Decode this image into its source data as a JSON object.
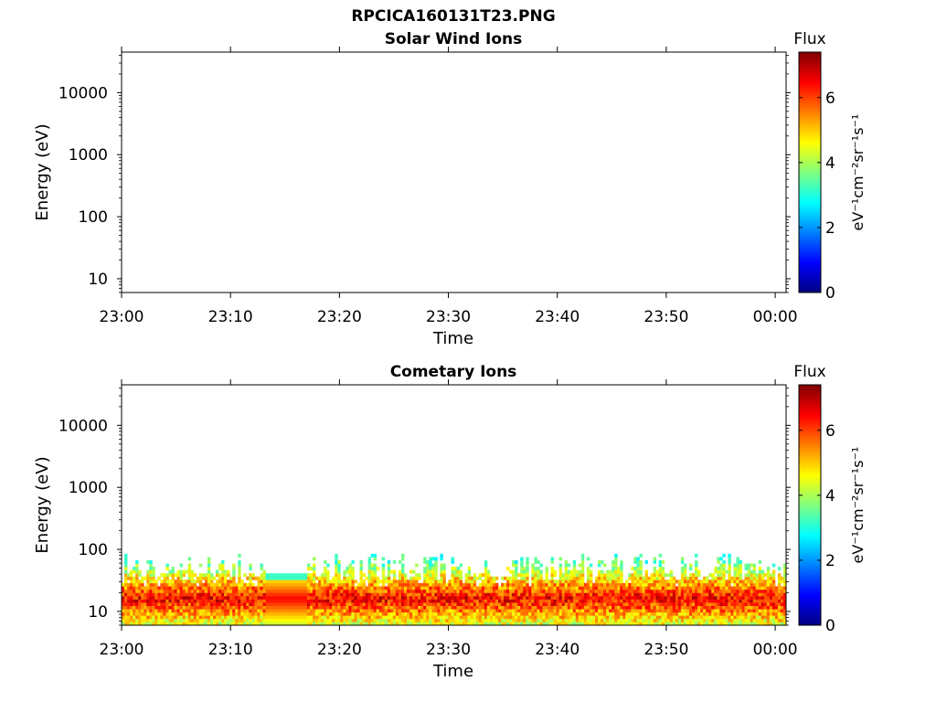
{
  "header": {
    "filename": "RPCICA160131T23.PNG"
  },
  "colors": {
    "jet": [
      "#00007f",
      "#0000ff",
      "#007fff",
      "#00ffff",
      "#7fff7f",
      "#ffff00",
      "#ff7f00",
      "#ff0000",
      "#7f0000"
    ]
  },
  "chart_data": [
    {
      "type": "heatmap",
      "title": "Solar Wind Ions",
      "xlabel": "Time",
      "ylabel": "Energy (eV)",
      "x_ticks": [
        "23:00",
        "23:10",
        "23:20",
        "23:30",
        "23:40",
        "23:50",
        "00:00"
      ],
      "y_ticks": [
        "10",
        "100",
        "1000",
        "10000"
      ],
      "y_scale": "log",
      "ylim": [
        6,
        45000
      ],
      "xlim_minutes": [
        0,
        61
      ],
      "colorbar": {
        "label": "Flux",
        "unit": "eV⁻¹cm⁻²sr⁻¹s⁻¹",
        "ticks": [
          "0",
          "2",
          "4",
          "6"
        ],
        "range": [
          0,
          7.4
        ]
      },
      "data": "empty"
    },
    {
      "type": "heatmap",
      "title": "Cometary Ions",
      "xlabel": "Time",
      "ylabel": "Energy (eV)",
      "x_ticks": [
        "23:00",
        "23:10",
        "23:20",
        "23:30",
        "23:40",
        "23:50",
        "00:00"
      ],
      "y_ticks": [
        "10",
        "100",
        "1000",
        "10000"
      ],
      "y_scale": "log",
      "ylim": [
        6,
        45000
      ],
      "xlim_minutes": [
        0,
        61
      ],
      "colorbar": {
        "label": "Flux",
        "unit": "eV⁻¹cm⁻²sr⁻¹s⁻¹",
        "ticks": [
          "0",
          "2",
          "4",
          "6"
        ],
        "range": [
          0,
          7.4
        ]
      },
      "data": {
        "energy_range_eV": [
          6,
          85
        ],
        "peak_energy_eV": [
          10,
          25
        ],
        "peak_flux": 6.5,
        "uniform_segment_minutes": [
          13,
          17
        ]
      }
    }
  ]
}
